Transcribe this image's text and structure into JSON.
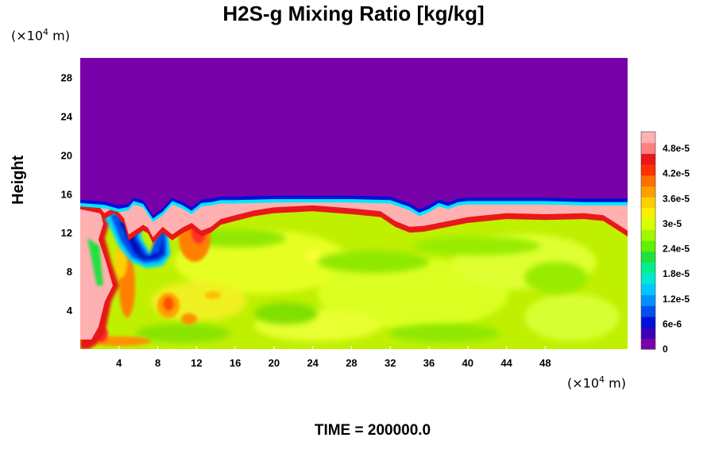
{
  "chart_data": {
    "type": "heatmap",
    "title": "H2S-g Mixing Ratio [kg/kg]",
    "ylabel": "Height",
    "x_unit": {
      "base": "(×10",
      "exp": "4",
      "rest": " m)"
    },
    "y_unit": {
      "base": "(×10",
      "exp": "4",
      "rest": " m)"
    },
    "xlim": [
      0,
      56.5
    ],
    "ylim": [
      0,
      30
    ],
    "x_ticks": [
      "4",
      "8",
      "12",
      "16",
      "20",
      "24",
      "28",
      "32",
      "36",
      "40",
      "44",
      "48"
    ],
    "y_ticks": [
      "4",
      "8",
      "12",
      "16",
      "20",
      "24",
      "28"
    ],
    "x_tick_values": [
      4,
      8,
      12,
      16,
      20,
      24,
      28,
      32,
      36,
      40,
      44,
      48
    ],
    "y_tick_values": [
      4,
      8,
      12,
      16,
      20,
      24,
      28
    ],
    "colorbar": {
      "vmin": 0,
      "vmax": 5.2e-05,
      "tick_labels": [
        "0",
        "6e-6",
        "1.2e-5",
        "1.8e-5",
        "2.4e-5",
        "3e-5",
        "3.6e-5",
        "4.2e-5",
        "4.8e-5"
      ],
      "tick_values": [
        0,
        6e-06,
        1.2e-05,
        1.8e-05,
        2.4e-05,
        3e-05,
        3.6e-05,
        4.2e-05,
        4.8e-05
      ],
      "colors": [
        "#7a00a8",
        "#3a00b8",
        "#0010d8",
        "#0050f0",
        "#0090ff",
        "#00c8ff",
        "#00e8d0",
        "#00f090",
        "#20e040",
        "#60f000",
        "#a0f800",
        "#d8ff00",
        "#f8f000",
        "#ffd000",
        "#ffa000",
        "#ff7000",
        "#ff3000",
        "#e81818",
        "#ff8080",
        "#ffb0b0"
      ]
    },
    "regions": {
      "upper_layer_value": 0,
      "background_value": 3.3e-05,
      "top_boundary_value": 5.1e-05,
      "top_boundary_height": [
        15,
        12.5
      ]
    },
    "footer": "TIME = 200000.0"
  }
}
